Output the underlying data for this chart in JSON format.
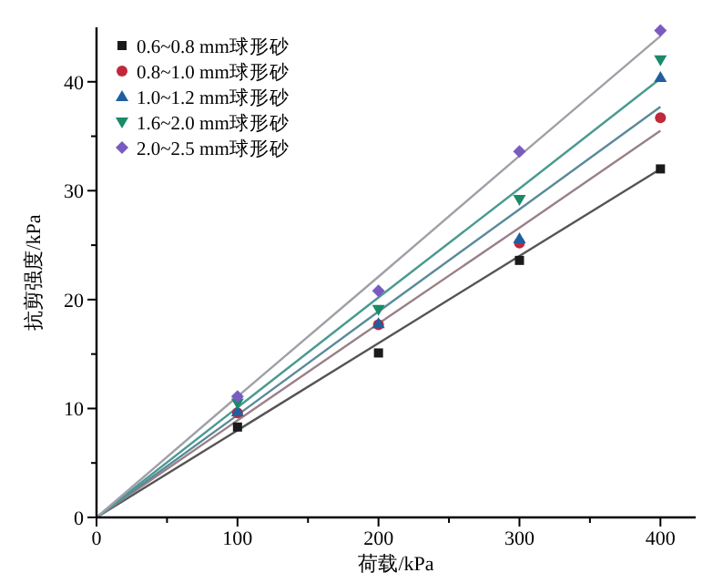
{
  "chart_data": {
    "type": "scatter",
    "xlabel": "荷载/kPa",
    "ylabel": "抗剪强度/kPa",
    "xlim": [
      0,
      425
    ],
    "ylim": [
      0,
      45
    ],
    "xticks": [
      0,
      {
        "value": 50,
        "label": null
      },
      100,
      {
        "value": 150,
        "label": null
      },
      200,
      {
        "value": 250,
        "label": null
      },
      300,
      {
        "value": 350,
        "label": null
      },
      400
    ],
    "yticks": [
      0,
      {
        "value": 5,
        "label": null
      },
      10,
      {
        "value": 15,
        "label": null
      },
      20,
      {
        "value": 25,
        "label": null
      },
      30,
      {
        "value": 35,
        "label": null
      },
      40
    ],
    "x": [
      0,
      100,
      200,
      300,
      400
    ],
    "legend": "top left",
    "series": [
      {
        "name": "0.6~0.8 mm球形砂",
        "color": "#1a1a1a",
        "marker": "square",
        "values": [
          null,
          8.3,
          15.1,
          23.6,
          32.0
        ]
      },
      {
        "name": "0.8~1.0 mm球形砂",
        "color": "#c0283c",
        "marker": "circle",
        "values": [
          null,
          9.6,
          17.7,
          25.2,
          36.7
        ]
      },
      {
        "name": "1.0~1.2 mm球形砂",
        "color": "#1f5fa0",
        "marker": "triangle",
        "values": [
          null,
          9.7,
          17.8,
          25.6,
          40.4
        ]
      },
      {
        "name": "1.6~2.0 mm球形砂",
        "color": "#1a8a6a",
        "marker": "triangle-down",
        "values": [
          null,
          10.5,
          19.1,
          29.2,
          42.0
        ]
      },
      {
        "name": "2.0~2.5 mm球形砂",
        "color": "#7a5cc0",
        "marker": "diamond",
        "values": [
          null,
          11.1,
          20.8,
          33.6,
          44.7
        ]
      },
      {
        "type": "line",
        "color": "#555555",
        "values": [
          0,
          8.0,
          16.0,
          24.0,
          32.0
        ]
      },
      {
        "type": "line",
        "color": "#9a8088",
        "values": [
          0,
          8.9,
          17.8,
          26.6,
          35.5
        ]
      },
      {
        "type": "line",
        "color": "#5a8a9a",
        "values": [
          0,
          9.4,
          18.9,
          28.3,
          37.7
        ]
      },
      {
        "type": "line",
        "color": "#4a9a90",
        "values": [
          0,
          10.1,
          20.2,
          30.2,
          40.3
        ]
      },
      {
        "type": "line",
        "color": "#a0a0a8",
        "values": [
          0,
          11.1,
          22.1,
          33.2,
          44.2
        ]
      }
    ]
  }
}
